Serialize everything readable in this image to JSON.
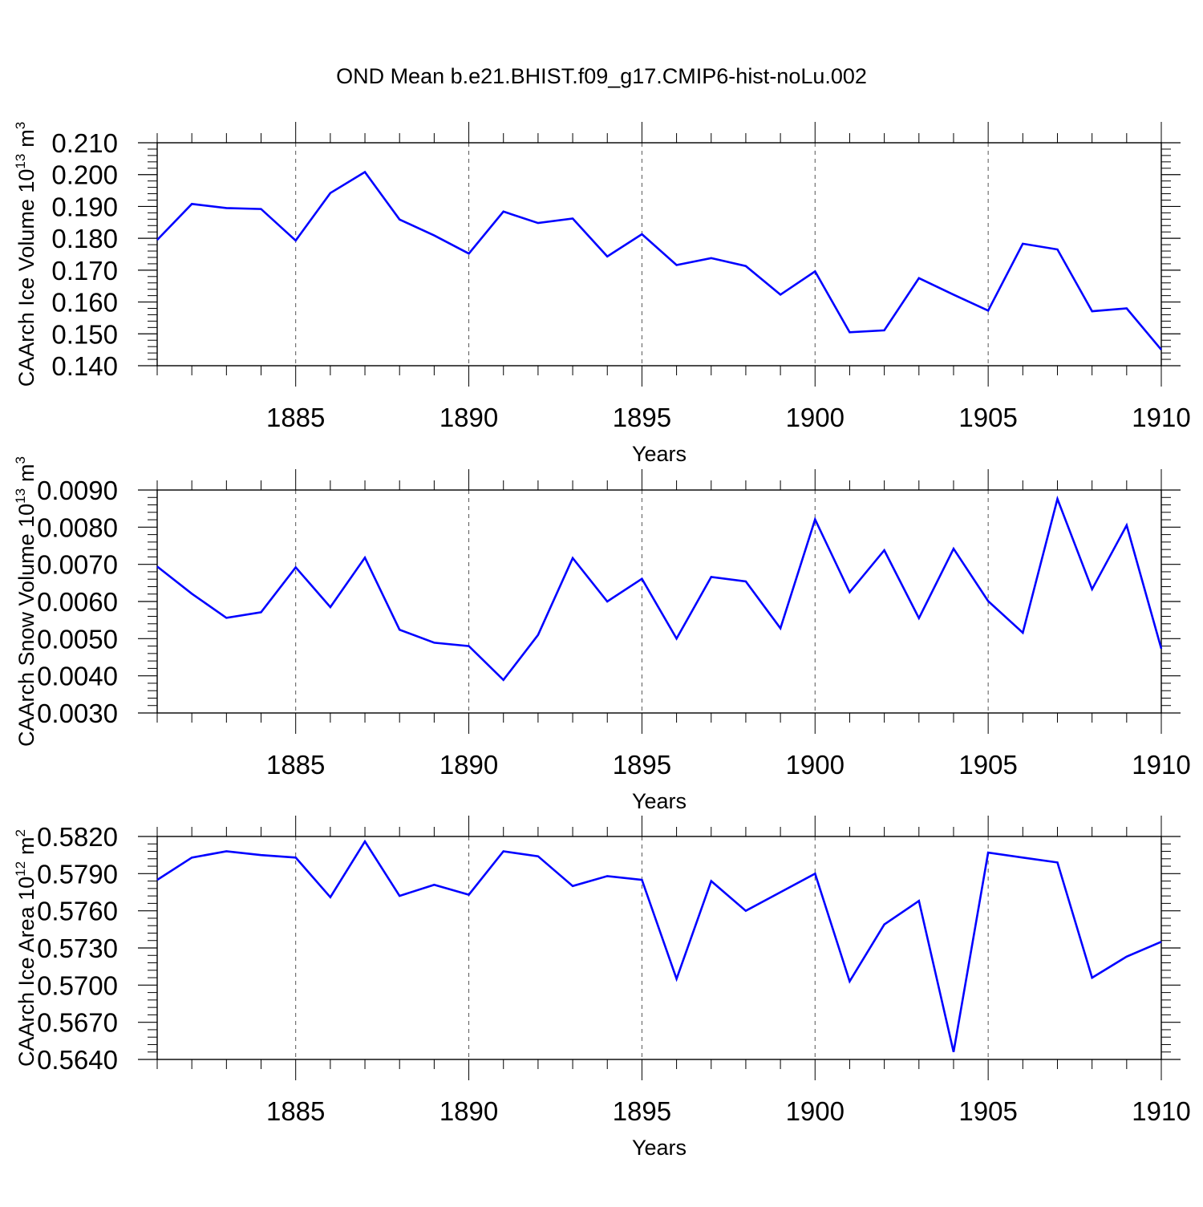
{
  "title": "OND Mean b.e21.BHIST.f09_g17.CMIP6-hist-noLu.002",
  "line_color": "#0000ff",
  "chart_data": [
    {
      "type": "line",
      "ylabel": "CAArch Ice Volume 10",
      "ylabel_exp": "13",
      "ylabel_unit": "m",
      "ylabel_unit_exp": "3",
      "xlabel": "Years",
      "xlim": [
        1881,
        1910
      ],
      "ylim": [
        0.14,
        0.21
      ],
      "yticks": [
        "0.210",
        "0.200",
        "0.190",
        "0.180",
        "0.170",
        "0.160",
        "0.150",
        "0.140"
      ],
      "ytick_values": [
        0.21,
        0.2,
        0.19,
        0.18,
        0.17,
        0.16,
        0.15,
        0.14
      ],
      "xticks": [
        "1885",
        "1890",
        "1895",
        "1900",
        "1905",
        "1910"
      ],
      "xtick_values": [
        1885,
        1890,
        1895,
        1900,
        1905,
        1910
      ],
      "x": [
        1881,
        1882,
        1883,
        1884,
        1885,
        1886,
        1887,
        1888,
        1889,
        1890,
        1891,
        1892,
        1893,
        1894,
        1895,
        1896,
        1897,
        1898,
        1899,
        1900,
        1901,
        1902,
        1903,
        1904,
        1905,
        1906,
        1907,
        1908,
        1909,
        1910
      ],
      "values": [
        0.1795,
        0.1908,
        0.1895,
        0.1892,
        0.1793,
        0.1942,
        0.2008,
        0.1859,
        0.1809,
        0.1752,
        0.1884,
        0.1848,
        0.1862,
        0.1743,
        0.1813,
        0.1716,
        0.1738,
        0.1713,
        0.1623,
        0.1696,
        0.1505,
        0.1511,
        0.1675,
        0.1623,
        0.1573,
        0.1783,
        0.1765,
        0.1571,
        0.158,
        0.145
      ]
    },
    {
      "type": "line",
      "ylabel": "CAArch Snow Volume 10",
      "ylabel_exp": "13",
      "ylabel_unit": "m",
      "ylabel_unit_exp": "3",
      "xlabel": "Years",
      "xlim": [
        1881,
        1910
      ],
      "ylim": [
        0.003,
        0.009
      ],
      "yticks": [
        "0.0090",
        "0.0080",
        "0.0070",
        "0.0060",
        "0.0050",
        "0.0040",
        "0.0030"
      ],
      "ytick_values": [
        0.009,
        0.008,
        0.007,
        0.006,
        0.005,
        0.004,
        0.003
      ],
      "xticks": [
        "1885",
        "1890",
        "1895",
        "1900",
        "1905",
        "1910"
      ],
      "xtick_values": [
        1885,
        1890,
        1895,
        1900,
        1905,
        1910
      ],
      "x": [
        1881,
        1882,
        1883,
        1884,
        1885,
        1886,
        1887,
        1888,
        1889,
        1890,
        1891,
        1892,
        1893,
        1894,
        1895,
        1896,
        1897,
        1898,
        1899,
        1900,
        1901,
        1902,
        1903,
        1904,
        1905,
        1906,
        1907,
        1908,
        1909,
        1910
      ],
      "values": [
        0.00694,
        0.00621,
        0.00556,
        0.00571,
        0.00692,
        0.00585,
        0.00718,
        0.00524,
        0.00489,
        0.0048,
        0.00389,
        0.0051,
        0.00717,
        0.006,
        0.00661,
        0.005,
        0.00666,
        0.00654,
        0.00528,
        0.00821,
        0.00625,
        0.00738,
        0.00555,
        0.00742,
        0.00601,
        0.00516,
        0.00876,
        0.00633,
        0.00805,
        0.00473
      ]
    },
    {
      "type": "line",
      "ylabel": "CAArch Ice Area 10",
      "ylabel_exp": "12",
      "ylabel_unit": "m",
      "ylabel_unit_exp": "2",
      "xlabel": "Years",
      "xlim": [
        1881,
        1910
      ],
      "ylim": [
        0.564,
        0.582
      ],
      "yticks": [
        "0.5820",
        "0.5790",
        "0.5760",
        "0.5730",
        "0.5700",
        "0.5670",
        "0.5640"
      ],
      "ytick_values": [
        0.582,
        0.579,
        0.576,
        0.573,
        0.57,
        0.567,
        0.564
      ],
      "xticks": [
        "1885",
        "1890",
        "1895",
        "1900",
        "1905",
        "1910"
      ],
      "xtick_values": [
        1885,
        1890,
        1895,
        1900,
        1905,
        1910
      ],
      "x": [
        1881,
        1882,
        1883,
        1884,
        1885,
        1886,
        1887,
        1888,
        1889,
        1890,
        1891,
        1892,
        1893,
        1894,
        1895,
        1896,
        1897,
        1898,
        1899,
        1900,
        1901,
        1902,
        1903,
        1904,
        1905,
        1906,
        1907,
        1908,
        1909,
        1910
      ],
      "values": [
        0.5785,
        0.5803,
        0.5808,
        0.5805,
        0.5803,
        0.5771,
        0.5816,
        0.5772,
        0.5781,
        0.5773,
        0.5808,
        0.5804,
        0.578,
        0.5788,
        0.5785,
        0.5705,
        0.5784,
        0.576,
        0.5775,
        0.579,
        0.5703,
        0.5749,
        0.5768,
        0.5646,
        0.5807,
        0.5803,
        0.5799,
        0.5706,
        0.5723,
        0.5735
      ]
    }
  ]
}
